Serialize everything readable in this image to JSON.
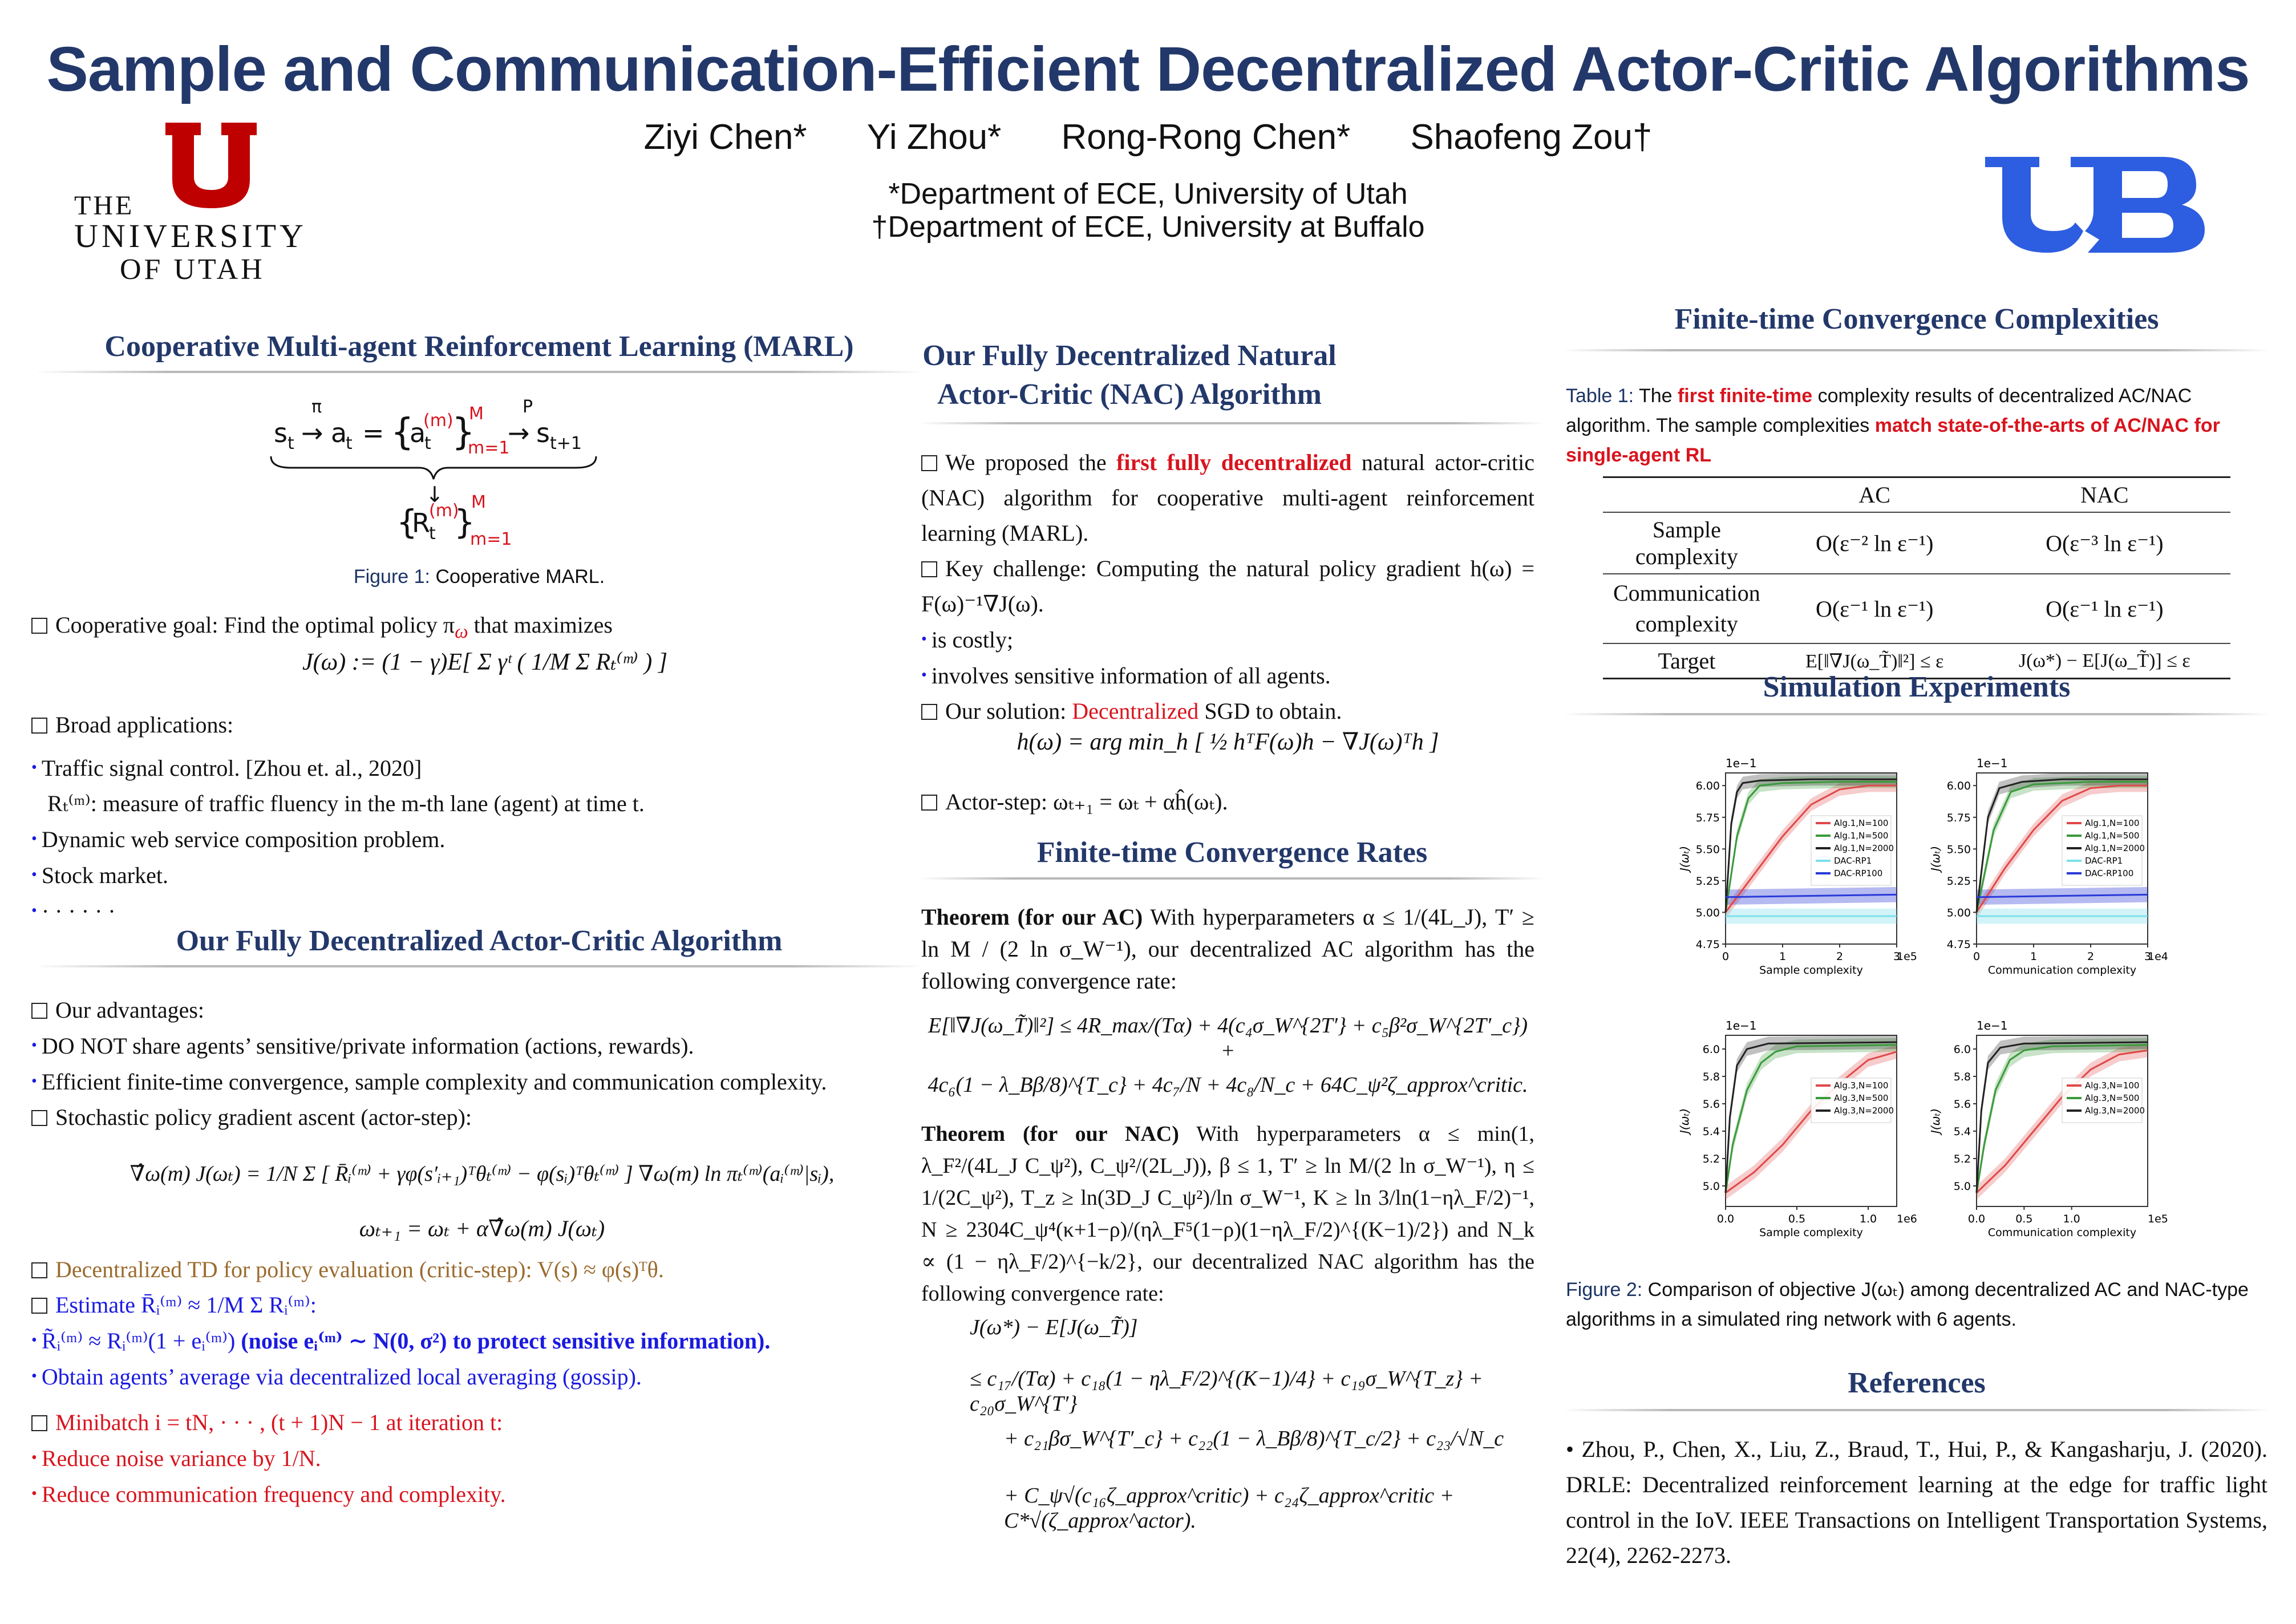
{
  "title": "Sample and Communication-Efficient Decentralized Actor-Critic Algorithms",
  "authors": [
    "Ziyi Chen*",
    "Yi Zhou*",
    "Rong-Rong Chen*",
    "Shaofeng Zou†"
  ],
  "affiliations": [
    "*Department of ECE, University of Utah",
    "†Department of ECE, University at Buffalo"
  ],
  "logos": {
    "utah_letter": "U",
    "utah_text": [
      "THE",
      "UNIVERSITY",
      "OF UTAH"
    ],
    "buffalo_letters": "UB"
  },
  "col1": {
    "sec_marl": "Cooperative Multi-agent Reinforcement Learning (MARL)",
    "fig1_label": "Figure 1:",
    "fig1_text": "Cooperative MARL.",
    "coop_goal": "Cooperative goal: Find the optimal policy π",
    "coop_goal2": "that maximizes",
    "obj_eq": "J(ω) := (1 − γ)E[ Σ γᵗ ( 1/M Σ Rₜ⁽ᵐ⁾ ) ]",
    "broad": "Broad applications:",
    "app1": "Traffic signal control. [Zhou et. al., 2020]",
    "app1b": "Rₜ⁽ᵐ⁾: measure of traffic fluency in the m-th lane (agent) at time t.",
    "app2": "Dynamic web service composition problem.",
    "app3": "Stock market.",
    "app4": "· · · · · ·",
    "sec_ac": "Our Fully Decentralized Actor-Critic Algorithm",
    "adv": "Our advantages:",
    "adv1": "DO NOT share agents’ sensitive/private information (actions, rewards).",
    "adv2": "Efficient finite-time convergence, sample complexity and communication complexity.",
    "spga": "Stochastic policy gradient ascent (actor-step):",
    "spga_eq1": "∇̂ω(m) J(ωₜ) = 1/N Σ [ R̄ᵢ⁽ᵐ⁾ + γφ(s′ᵢ₊₁)ᵀθₜ⁽ᵐ⁾ − φ(sᵢ)ᵀθₜ⁽ᵐ⁾ ] ∇ω(m) ln πₜ⁽ᵐ⁾(aᵢ⁽ᵐ⁾|sᵢ),",
    "spga_eq2": "ωₜ₊₁ = ωₜ + α∇̂ω(m) J(ωₜ)",
    "td": "Decentralized TD for policy evaluation (critic-step): V(s) ≈ φ(s)ᵀθ.",
    "est": "Estimate R̄ᵢ⁽ᵐ⁾ ≈ 1/M Σ Rᵢ⁽ᵐ⁾:",
    "est1a": "R̃ᵢ⁽ᵐ⁾ ≈ Rᵢ⁽ᵐ⁾(1 + eᵢ⁽ᵐ⁾)",
    "est1b": "(noise eᵢ⁽ᵐ⁾ ∼ N(0, σ²) to protect sensitive information).",
    "est2": "Obtain agents’ average via decentralized local averaging (gossip).",
    "mb": "Minibatch i = tN, · · · , (t + 1)N − 1 at iteration t:",
    "mb1": "Reduce noise variance by 1/N.",
    "mb2": "Reduce communication frequency and complexity."
  },
  "col2": {
    "sec_nac": "Our Fully Decentralized Natural Actor-Critic (NAC) Algorithm",
    "p1a": "We proposed the",
    "p1b": "first fully decentralized",
    "p1c": "natural actor-critic (NAC) algorithm for cooperative multi-agent reinforcement learning (MARL).",
    "p2": "Key challenge: Computing the natural policy gradient h(ω) = F(ω)⁻¹∇J(ω).",
    "p2a": "is costly;",
    "p2b": "involves sensitive information of all agents.",
    "p3a": "Our solution:",
    "p3b": "Decentralized",
    "p3c": "SGD to obtain.",
    "h_eq": "h(ω) = arg min_h [ ½ hᵀF(ω)h − ∇J(ω)ᵀh ]",
    "p4": "Actor-step: ωₜ₊₁ = ωₜ + αĥ(ωₜ).",
    "sec_rates": "Finite-time Convergence Rates",
    "thm1_head": "Theorem (for our AC)",
    "thm1_text": "With hyperparameters α ≤ 1/(4L_J), T′ ≥ ln M / (2 ln σ_W⁻¹), our decentralized AC algorithm has the following convergence rate:",
    "thm1_eq1": "E[‖∇J(ω_T̃)‖²] ≤ 4R_max/(Tα) + 4(c₄σ_W^{2T′} + c₅β²σ_W^{2T′_c}) +",
    "thm1_eq2": "4c₆(1 − λ_Bβ/8)^{T_c} + 4c₇/N + 4c₈/N_c + 64C_ψ²ζ_approx^critic.",
    "thm2_head": "Theorem (for our NAC)",
    "thm2_text": "With hyperparameters α ≤ min(1, λ_F²/(4L_J C_ψ²), C_ψ²/(2L_J)), β ≤ 1, T′ ≥ ln M/(2 ln σ_W⁻¹), η ≤ 1/(2C_ψ²), T_z ≥ ln(3D_J C_ψ²)/ln σ_W⁻¹, K ≥ ln 3/ln(1−ηλ_F/2)⁻¹, N ≥ 2304C_ψ⁴(κ+1−ρ)/(ηλ_F⁵(1−ρ)(1−ηλ_F/2)^{(K−1)/2}) and N_k ∝ (1 − ηλ_F/2)^{−k/2}, our decentralized NAC algorithm has the following convergence rate:",
    "thm2_eq1": "J(ω*) − E[J(ω_T̃)]",
    "thm2_eq2": "≤ c₁₇/(Tα) + c₁₈(1 − ηλ_F/2)^{(K−1)/4} + c₁₉σ_W^{T_z} + c₂₀σ_W^{T′}",
    "thm2_eq3": "+ c₂₁βσ_W^{T′_c} + c₂₂(1 − λ_Bβ/8)^{T_c/2} + c₂₃/√N_c",
    "thm2_eq4": "+ C_ψ√(c₁₆ζ_approx^critic) + c₂₄ζ_approx^critic + C*√(ζ_approx^actor)."
  },
  "col3": {
    "sec_complex": "Finite-time Convergence Complexities",
    "tab_label": "Table 1:",
    "tab_a": "The",
    "tab_b": "first finite-time",
    "tab_c": "complexity results of decentralized AC/NAC algorithm. The sample complexities",
    "tab_d": "match state-of-the-arts of AC/NAC for single-agent RL",
    "tab_head": [
      "",
      "AC",
      "NAC"
    ],
    "tab_rows": [
      [
        "Sample complexity",
        "O(ε⁻² ln ε⁻¹)",
        "O(ε⁻³ ln ε⁻¹)"
      ],
      [
        "Communication complexity",
        "O(ε⁻¹ ln ε⁻¹)",
        "O(ε⁻¹ ln ε⁻¹)"
      ],
      [
        "Target",
        "E[‖∇J(ω_T̃)‖²] ≤ ε",
        "J(ω*) − E[J(ω_T̃)] ≤ ε"
      ]
    ],
    "sec_sim": "Simulation Experiments",
    "fig2_label": "Figure 2:",
    "fig2_text": "Comparison of objective J(ωₜ) among decentralized AC and NAC-type algorithms in a simulated ring network with 6 agents.",
    "sec_refs": "References",
    "ref1": "• Zhou, P., Chen, X., Liu, Z., Braud, T., Hui, P., & Kangasharju, J. (2020). DRLE: Decentralized reinforcement learning at the edge for traffic light control in the IoV. IEEE Transactions on Intelligent Transportation Systems, 22(4), 2262-2273."
  },
  "chart_data": [
    {
      "type": "line",
      "panel": "top-left",
      "scale_label": "1e−1",
      "ylabel": "J(ωₜ)",
      "xlabel": "Sample complexity",
      "x_scale_label": "1e5",
      "xlim": [
        0,
        3
      ],
      "ylim": [
        4.75,
        6.1
      ],
      "yticks": [
        "6.00",
        "5.75",
        "5.50",
        "5.25",
        "5.00",
        "4.75"
      ],
      "xticks": [
        "0",
        "1",
        "2",
        "3"
      ],
      "legend": "top-right",
      "series": [
        {
          "name": "Alg.1,N=100",
          "color": "#e04848",
          "x": [
            0,
            0.5,
            1.0,
            1.5,
            2.0,
            2.5,
            3.0
          ],
          "y": [
            5.0,
            5.3,
            5.6,
            5.85,
            5.97,
            6.0,
            6.0
          ]
        },
        {
          "name": "Alg.1,N=500",
          "color": "#3a9a3a",
          "x": [
            0,
            0.2,
            0.4,
            0.6,
            1.0,
            2.0,
            3.0
          ],
          "y": [
            5.0,
            5.6,
            5.9,
            6.0,
            6.02,
            6.03,
            6.03
          ]
        },
        {
          "name": "Alg.1,N=2000",
          "color": "#222222",
          "x": [
            0,
            0.1,
            0.2,
            0.3,
            0.6,
            1.5,
            3.0
          ],
          "y": [
            5.0,
            5.7,
            5.95,
            6.02,
            6.04,
            6.05,
            6.05
          ]
        },
        {
          "name": "DAC-RP1",
          "color": "#7de0ea",
          "x": [
            0,
            1.5,
            3.0
          ],
          "y": [
            4.97,
            4.97,
            4.97
          ]
        },
        {
          "name": "DAC-RP100",
          "color": "#2a3ad8",
          "x": [
            0,
            1.5,
            3.0
          ],
          "y": [
            5.12,
            5.13,
            5.14
          ]
        }
      ]
    },
    {
      "type": "line",
      "panel": "top-right",
      "scale_label": "1e−1",
      "ylabel": "J(ωₜ)",
      "xlabel": "Communication complexity",
      "x_scale_label": "1e4",
      "xlim": [
        0,
        3
      ],
      "ylim": [
        4.75,
        6.1
      ],
      "yticks": [
        "6.00",
        "5.75",
        "5.50",
        "5.25",
        "5.00",
        "4.75"
      ],
      "xticks": [
        "0",
        "1",
        "2",
        "3"
      ],
      "legend": "top-right",
      "series": [
        {
          "name": "Alg.1,N=100",
          "color": "#e04848",
          "x": [
            0,
            0.5,
            1.0,
            1.5,
            2.0,
            2.5,
            3.0
          ],
          "y": [
            5.0,
            5.35,
            5.65,
            5.88,
            5.98,
            6.0,
            6.0
          ]
        },
        {
          "name": "Alg.1,N=500",
          "color": "#3a9a3a",
          "x": [
            0,
            0.3,
            0.6,
            1.0,
            2.0,
            3.0
          ],
          "y": [
            5.0,
            5.65,
            5.95,
            6.01,
            6.03,
            6.03
          ]
        },
        {
          "name": "Alg.1,N=2000",
          "color": "#222222",
          "x": [
            0,
            0.2,
            0.4,
            0.8,
            1.5,
            3.0
          ],
          "y": [
            5.0,
            5.75,
            5.98,
            6.03,
            6.05,
            6.05
          ]
        },
        {
          "name": "DAC-RP1",
          "color": "#7de0ea",
          "x": [
            0,
            1.5,
            3.0
          ],
          "y": [
            4.97,
            4.97,
            4.97
          ]
        },
        {
          "name": "DAC-RP100",
          "color": "#2a3ad8",
          "x": [
            0,
            1.5,
            3.0
          ],
          "y": [
            5.12,
            5.13,
            5.14
          ]
        }
      ]
    },
    {
      "type": "line",
      "panel": "bottom-left",
      "scale_label": "1e−1",
      "ylabel": "J(ωₜ)",
      "xlabel": "Sample complexity",
      "x_scale_label": "1e6",
      "xlim": [
        0,
        1.2
      ],
      "ylim": [
        4.85,
        6.1
      ],
      "yticks": [
        "6.0",
        "5.8",
        "5.6",
        "5.4",
        "5.2",
        "5.0"
      ],
      "xticks": [
        "0.0",
        "0.5",
        "1.0"
      ],
      "legend": "top-right",
      "series": [
        {
          "name": "Alg.3,N=100",
          "color": "#e04848",
          "x": [
            0,
            0.2,
            0.4,
            0.6,
            0.8,
            1.0,
            1.2
          ],
          "y": [
            4.95,
            5.1,
            5.3,
            5.55,
            5.75,
            5.92,
            5.98
          ]
        },
        {
          "name": "Alg.3,N=500",
          "color": "#3a9a3a",
          "x": [
            0,
            0.05,
            0.15,
            0.25,
            0.35,
            0.5,
            1.2
          ],
          "y": [
            4.95,
            5.3,
            5.7,
            5.9,
            5.98,
            6.02,
            6.03
          ]
        },
        {
          "name": "Alg.3,N=2000",
          "color": "#222222",
          "x": [
            0,
            0.03,
            0.08,
            0.15,
            0.3,
            1.2
          ],
          "y": [
            4.95,
            5.5,
            5.88,
            6.0,
            6.04,
            6.05
          ]
        }
      ]
    },
    {
      "type": "line",
      "panel": "bottom-right",
      "scale_label": "1e−1",
      "ylabel": "J(ωₜ)",
      "xlabel": "Communication complexity",
      "x_scale_label": "1e5",
      "xlim": [
        0,
        1.8
      ],
      "ylim": [
        4.85,
        6.1
      ],
      "yticks": [
        "6.0",
        "5.8",
        "5.6",
        "5.4",
        "5.2",
        "5.0"
      ],
      "xticks": [
        "0.0",
        "0.5",
        "1.0"
      ],
      "legend": "top-right",
      "series": [
        {
          "name": "Alg.3,N=100",
          "color": "#e04848",
          "x": [
            0,
            0.3,
            0.6,
            0.9,
            1.2,
            1.5,
            1.8
          ],
          "y": [
            4.95,
            5.15,
            5.4,
            5.65,
            5.85,
            5.96,
            5.99
          ]
        },
        {
          "name": "Alg.3,N=500",
          "color": "#3a9a3a",
          "x": [
            0,
            0.08,
            0.2,
            0.35,
            0.5,
            0.8,
            1.8
          ],
          "y": [
            4.95,
            5.3,
            5.7,
            5.92,
            5.99,
            6.02,
            6.03
          ]
        },
        {
          "name": "Alg.3,N=2000",
          "color": "#222222",
          "x": [
            0,
            0.05,
            0.12,
            0.25,
            0.5,
            1.8
          ],
          "y": [
            4.95,
            5.55,
            5.9,
            6.01,
            6.04,
            6.05
          ]
        }
      ]
    }
  ]
}
